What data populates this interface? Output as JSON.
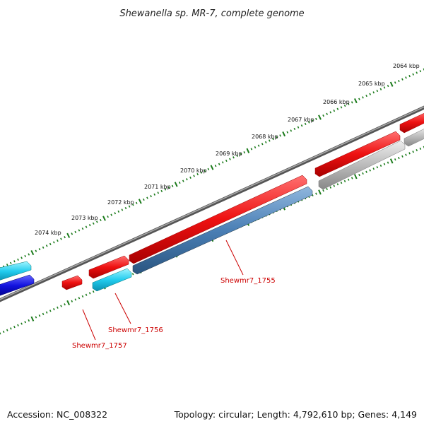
{
  "title": "Shewanella sp. MR-7, complete genome",
  "accession_text": "Accession: NC_008322",
  "summary_text": "Topology: circular; Length: 4,792,610 bp; Genes: 4,149",
  "kbp_labels": [
    "2064 kbp",
    "2065 kbp",
    "2066 kbp",
    "2067 kbp",
    "2068 kbp",
    "2069 kbp",
    "2070 kbp",
    "2071 kbp",
    "2072 kbp",
    "2073 kbp",
    "2074 kbp"
  ],
  "gene_labels": [
    "Shewmr7_1755",
    "Shewmr7_1756",
    "Shewmr7_1757"
  ],
  "colors": {
    "backbone": "#777777",
    "tick": "#1a7a1a",
    "red_gene": "#ee1111",
    "cyan_gene": "#22ccee",
    "blue_gene": "#1111dd",
    "steel_gene": "#4a7fb5",
    "grey_gene": "#bbbbbb",
    "label": "#cc0000"
  }
}
